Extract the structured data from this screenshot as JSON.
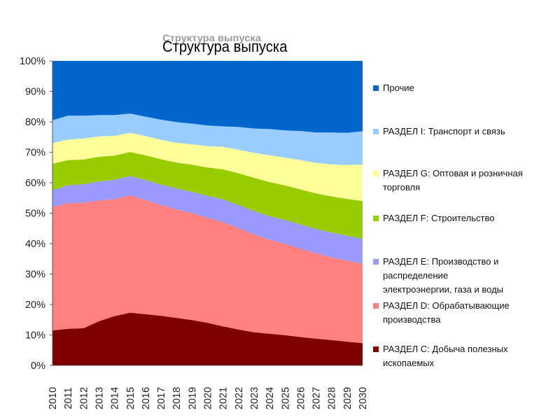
{
  "chart_data": {
    "type": "area",
    "stacked": true,
    "normalized": true,
    "title": "Структура выпуска",
    "x": [
      2010,
      2011,
      2012,
      2013,
      2014,
      2015,
      2016,
      2017,
      2018,
      2019,
      2020,
      2021,
      2022,
      2023,
      2024,
      2025,
      2026,
      2027,
      2028,
      2029,
      2030
    ],
    "x_tick_labels": [
      "2010",
      "2011",
      "2012",
      "2013",
      "2014",
      "2015",
      "2016",
      "2017",
      "2018",
      "2019",
      "2020",
      "2021",
      "2022",
      "2023",
      "2024",
      "2025",
      "2026",
      "2027",
      "2028",
      "2029",
      "2030"
    ],
    "y_tick_labels": [
      "0%",
      "10%",
      "20%",
      "30%",
      "40%",
      "50%",
      "60%",
      "70%",
      "80%",
      "90%",
      "100%"
    ],
    "ylim": [
      0,
      100
    ],
    "legend_position": "right",
    "series": [
      {
        "name": "РАЗДЕЛ C: Добыча полезных ископаемых",
        "legend_lines": [
          "РАЗДЕЛ C: Добыча полезных",
          "ископаемых"
        ],
        "color": "#7f0000",
        "values": [
          11.5,
          12.0,
          12.2,
          14.5,
          16.2,
          17.3,
          16.8,
          16.3,
          15.6,
          14.9,
          14.0,
          12.8,
          11.8,
          10.9,
          10.4,
          9.9,
          9.3,
          8.8,
          8.3,
          7.8,
          7.3
        ]
      },
      {
        "name": "РАЗДЕЛ D: Обрабатывающие производства",
        "legend_lines": [
          "РАЗДЕЛ D: Обрабатывающие",
          "производства"
        ],
        "color": "#ff8080",
        "values": [
          40.5,
          41.3,
          41.2,
          39.7,
          38.4,
          38.5,
          37.5,
          36.4,
          35.6,
          35.1,
          34.5,
          34.2,
          33.3,
          32.1,
          30.8,
          30.0,
          29.0,
          28.0,
          27.2,
          26.6,
          26.1
        ]
      },
      {
        "name": "РАЗДЕЛ E: Производство и распределение электроэнергии, газа и воды",
        "legend_lines": [
          "РАЗДЕЛ E: Производство и",
          "распределение",
          "электроэнергии, газа и воды"
        ],
        "color": "#9999ff",
        "values": [
          5.5,
          5.9,
          6.1,
          6.2,
          6.4,
          6.4,
          6.6,
          6.7,
          6.9,
          7.0,
          7.2,
          7.5,
          7.6,
          7.7,
          7.8,
          7.9,
          8.0,
          8.0,
          8.1,
          8.2,
          8.2
        ]
      },
      {
        "name": "РАЗДЕЛ F: Строительство",
        "legend_lines": [
          "РАЗДЕЛ F: Строительство"
        ],
        "color": "#99cc00",
        "values": [
          8.7,
          8.2,
          8.1,
          8.1,
          7.9,
          7.9,
          8.1,
          8.3,
          8.5,
          8.9,
          9.3,
          9.9,
          10.4,
          10.9,
          11.2,
          11.3,
          11.5,
          11.7,
          11.9,
          12.1,
          12.4
        ]
      },
      {
        "name": "РАЗДЕЛ G: Оптовая и розничная торговля",
        "legend_lines": [
          "РАЗДЕЛ G: Оптовая и розничная",
          "торговля"
        ],
        "color": "#ffff99",
        "values": [
          6.8,
          6.8,
          6.9,
          6.7,
          6.5,
          6.3,
          6.3,
          6.4,
          6.5,
          6.7,
          7.0,
          7.4,
          7.7,
          8.2,
          8.8,
          9.1,
          9.6,
          10.0,
          10.5,
          11.1,
          12.0
        ]
      },
      {
        "name": "РАЗДЕЛ I: Транспорт и связь",
        "legend_lines": [
          "РАЗДЕЛ I: Транспорт и связь"
        ],
        "color": "#99ccff",
        "values": [
          7.5,
          7.8,
          7.5,
          7.0,
          6.8,
          6.3,
          6.4,
          6.6,
          6.8,
          6.8,
          6.8,
          6.7,
          7.5,
          8.0,
          8.6,
          9.0,
          9.6,
          10.0,
          10.5,
          10.6,
          10.9
        ]
      },
      {
        "name": "Прочие",
        "legend_lines": [
          "Прочие"
        ],
        "color": "#0066cc",
        "values": [
          19.5,
          18.0,
          18.0,
          17.8,
          17.8,
          17.3,
          18.3,
          19.3,
          20.1,
          20.6,
          21.2,
          21.5,
          21.7,
          22.2,
          22.4,
          22.8,
          23.0,
          23.5,
          23.5,
          23.6,
          23.1
        ]
      }
    ]
  }
}
